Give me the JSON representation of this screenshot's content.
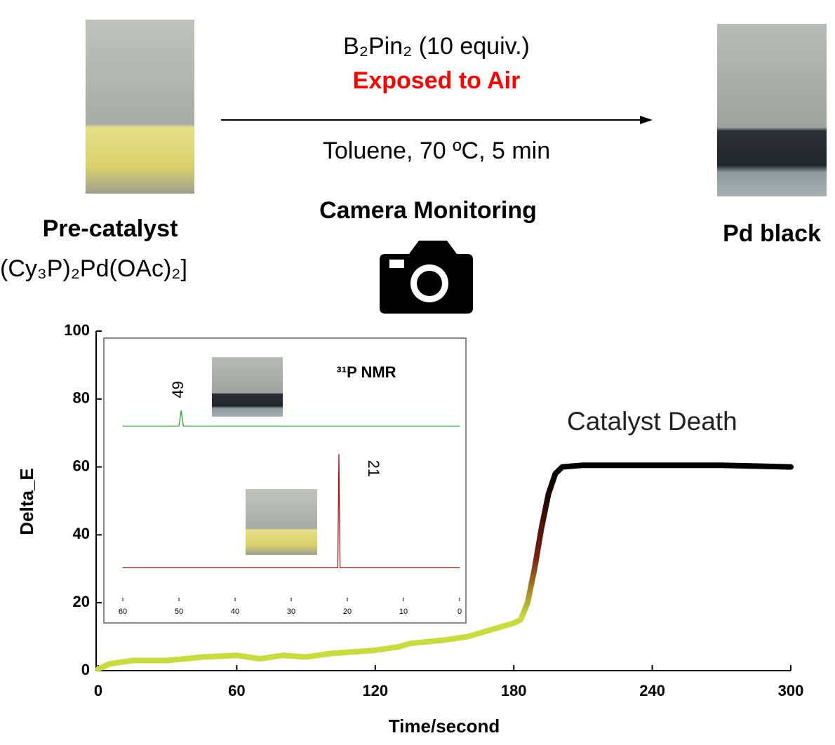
{
  "scheme": {
    "reagent": "B₂Pin₂ (10 equiv.)",
    "condition_highlight": "Exposed to Air",
    "conditions": "Toluene, 70 ºC, 5 min",
    "monitoring": "Camera Monitoring",
    "start": {
      "label": "Pre-catalyst",
      "formula": "(Cy₃P)₂Pd(OAc)₂]"
    },
    "product": {
      "label": "Pd black"
    }
  },
  "chart_data": [
    {
      "type": "line",
      "xlabel": "Time/second",
      "ylabel": "Delta_E",
      "annotation": "Catalyst Death",
      "xlim": [
        0,
        300
      ],
      "ylim": [
        0,
        100
      ],
      "xticks": [
        0,
        60,
        120,
        180,
        240,
        300
      ],
      "yticks": [
        0,
        20,
        40,
        60,
        80,
        100
      ],
      "series": [
        {
          "colors": [
            "#c8dc3c",
            "#7a2010",
            "#000000"
          ],
          "x": [
            0,
            5,
            15,
            30,
            45,
            60,
            70,
            80,
            90,
            100,
            110,
            120,
            130,
            135,
            150,
            160,
            170,
            180,
            183,
            186,
            189,
            192,
            195,
            198,
            201,
            210,
            240,
            270,
            300
          ],
          "values": [
            0.5,
            2,
            3,
            3,
            4,
            4.5,
            3.5,
            4.5,
            4,
            5,
            5.5,
            6,
            7,
            8,
            9,
            10,
            12,
            14,
            15,
            20,
            30,
            42,
            52,
            58,
            60,
            60.5,
            60.5,
            60.5,
            60
          ]
        }
      ]
    },
    {
      "type": "line",
      "title": "³¹P NMR",
      "xlim": [
        60,
        0
      ],
      "ylim": [
        0,
        100
      ],
      "xticks": [
        60,
        50,
        40,
        30,
        20,
        10,
        0
      ],
      "series": [
        {
          "color": "#2ca02c",
          "x": [
            60,
            50,
            49.6,
            49.2,
            0
          ],
          "values": [
            68,
            68,
            74,
            68,
            68
          ]
        },
        {
          "color": "#a01818",
          "x": [
            60,
            21.7,
            21.5,
            21.3,
            0
          ],
          "values": [
            13,
            13,
            57,
            13,
            13
          ]
        }
      ],
      "annotations": [
        {
          "text": "49",
          "x": 49
        },
        {
          "text": "21",
          "x": 21
        }
      ]
    }
  ]
}
